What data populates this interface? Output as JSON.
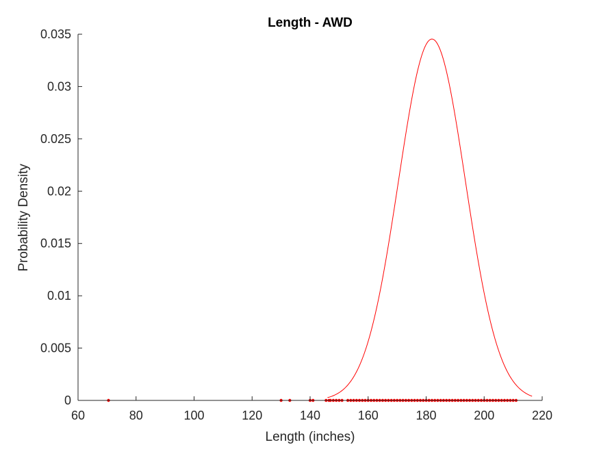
{
  "chart_data": {
    "type": "line",
    "title": "Length - AWD",
    "xlabel": "Length (inches)",
    "ylabel": "Probability Density",
    "xlim": [
      60,
      220
    ],
    "ylim": [
      0,
      0.035
    ],
    "x_ticks": [
      "60",
      "80",
      "100",
      "120",
      "140",
      "160",
      "180",
      "200",
      "220"
    ],
    "y_ticks": [
      "0",
      "0.005",
      "0.01",
      "0.015",
      "0.02",
      "0.025",
      "0.03",
      "0.035"
    ],
    "grid": false,
    "colors": {
      "series": "#ff0000",
      "axis": "#262626"
    },
    "series": [
      {
        "kind": "line",
        "distribution": "normal",
        "mean": 182,
        "std": 11.55,
        "x_range": [
          146,
          216.5
        ]
      },
      {
        "kind": "scatter",
        "y": 0,
        "x": [
          70.5,
          130,
          133,
          140,
          141,
          145.5,
          146.5,
          147,
          148,
          149,
          150,
          151,
          153,
          154,
          155,
          156,
          157,
          158,
          159,
          160,
          161,
          162,
          163,
          164,
          165,
          166,
          167,
          168,
          169,
          170,
          171,
          172,
          173,
          174,
          175,
          176,
          177,
          178,
          179,
          180,
          181,
          182,
          183,
          184,
          185,
          186,
          187,
          188,
          189,
          190,
          191,
          192,
          193,
          194,
          195,
          196,
          197,
          198,
          199,
          200,
          201,
          202,
          203,
          204,
          205,
          206,
          207,
          208,
          209,
          210,
          211
        ]
      }
    ]
  }
}
